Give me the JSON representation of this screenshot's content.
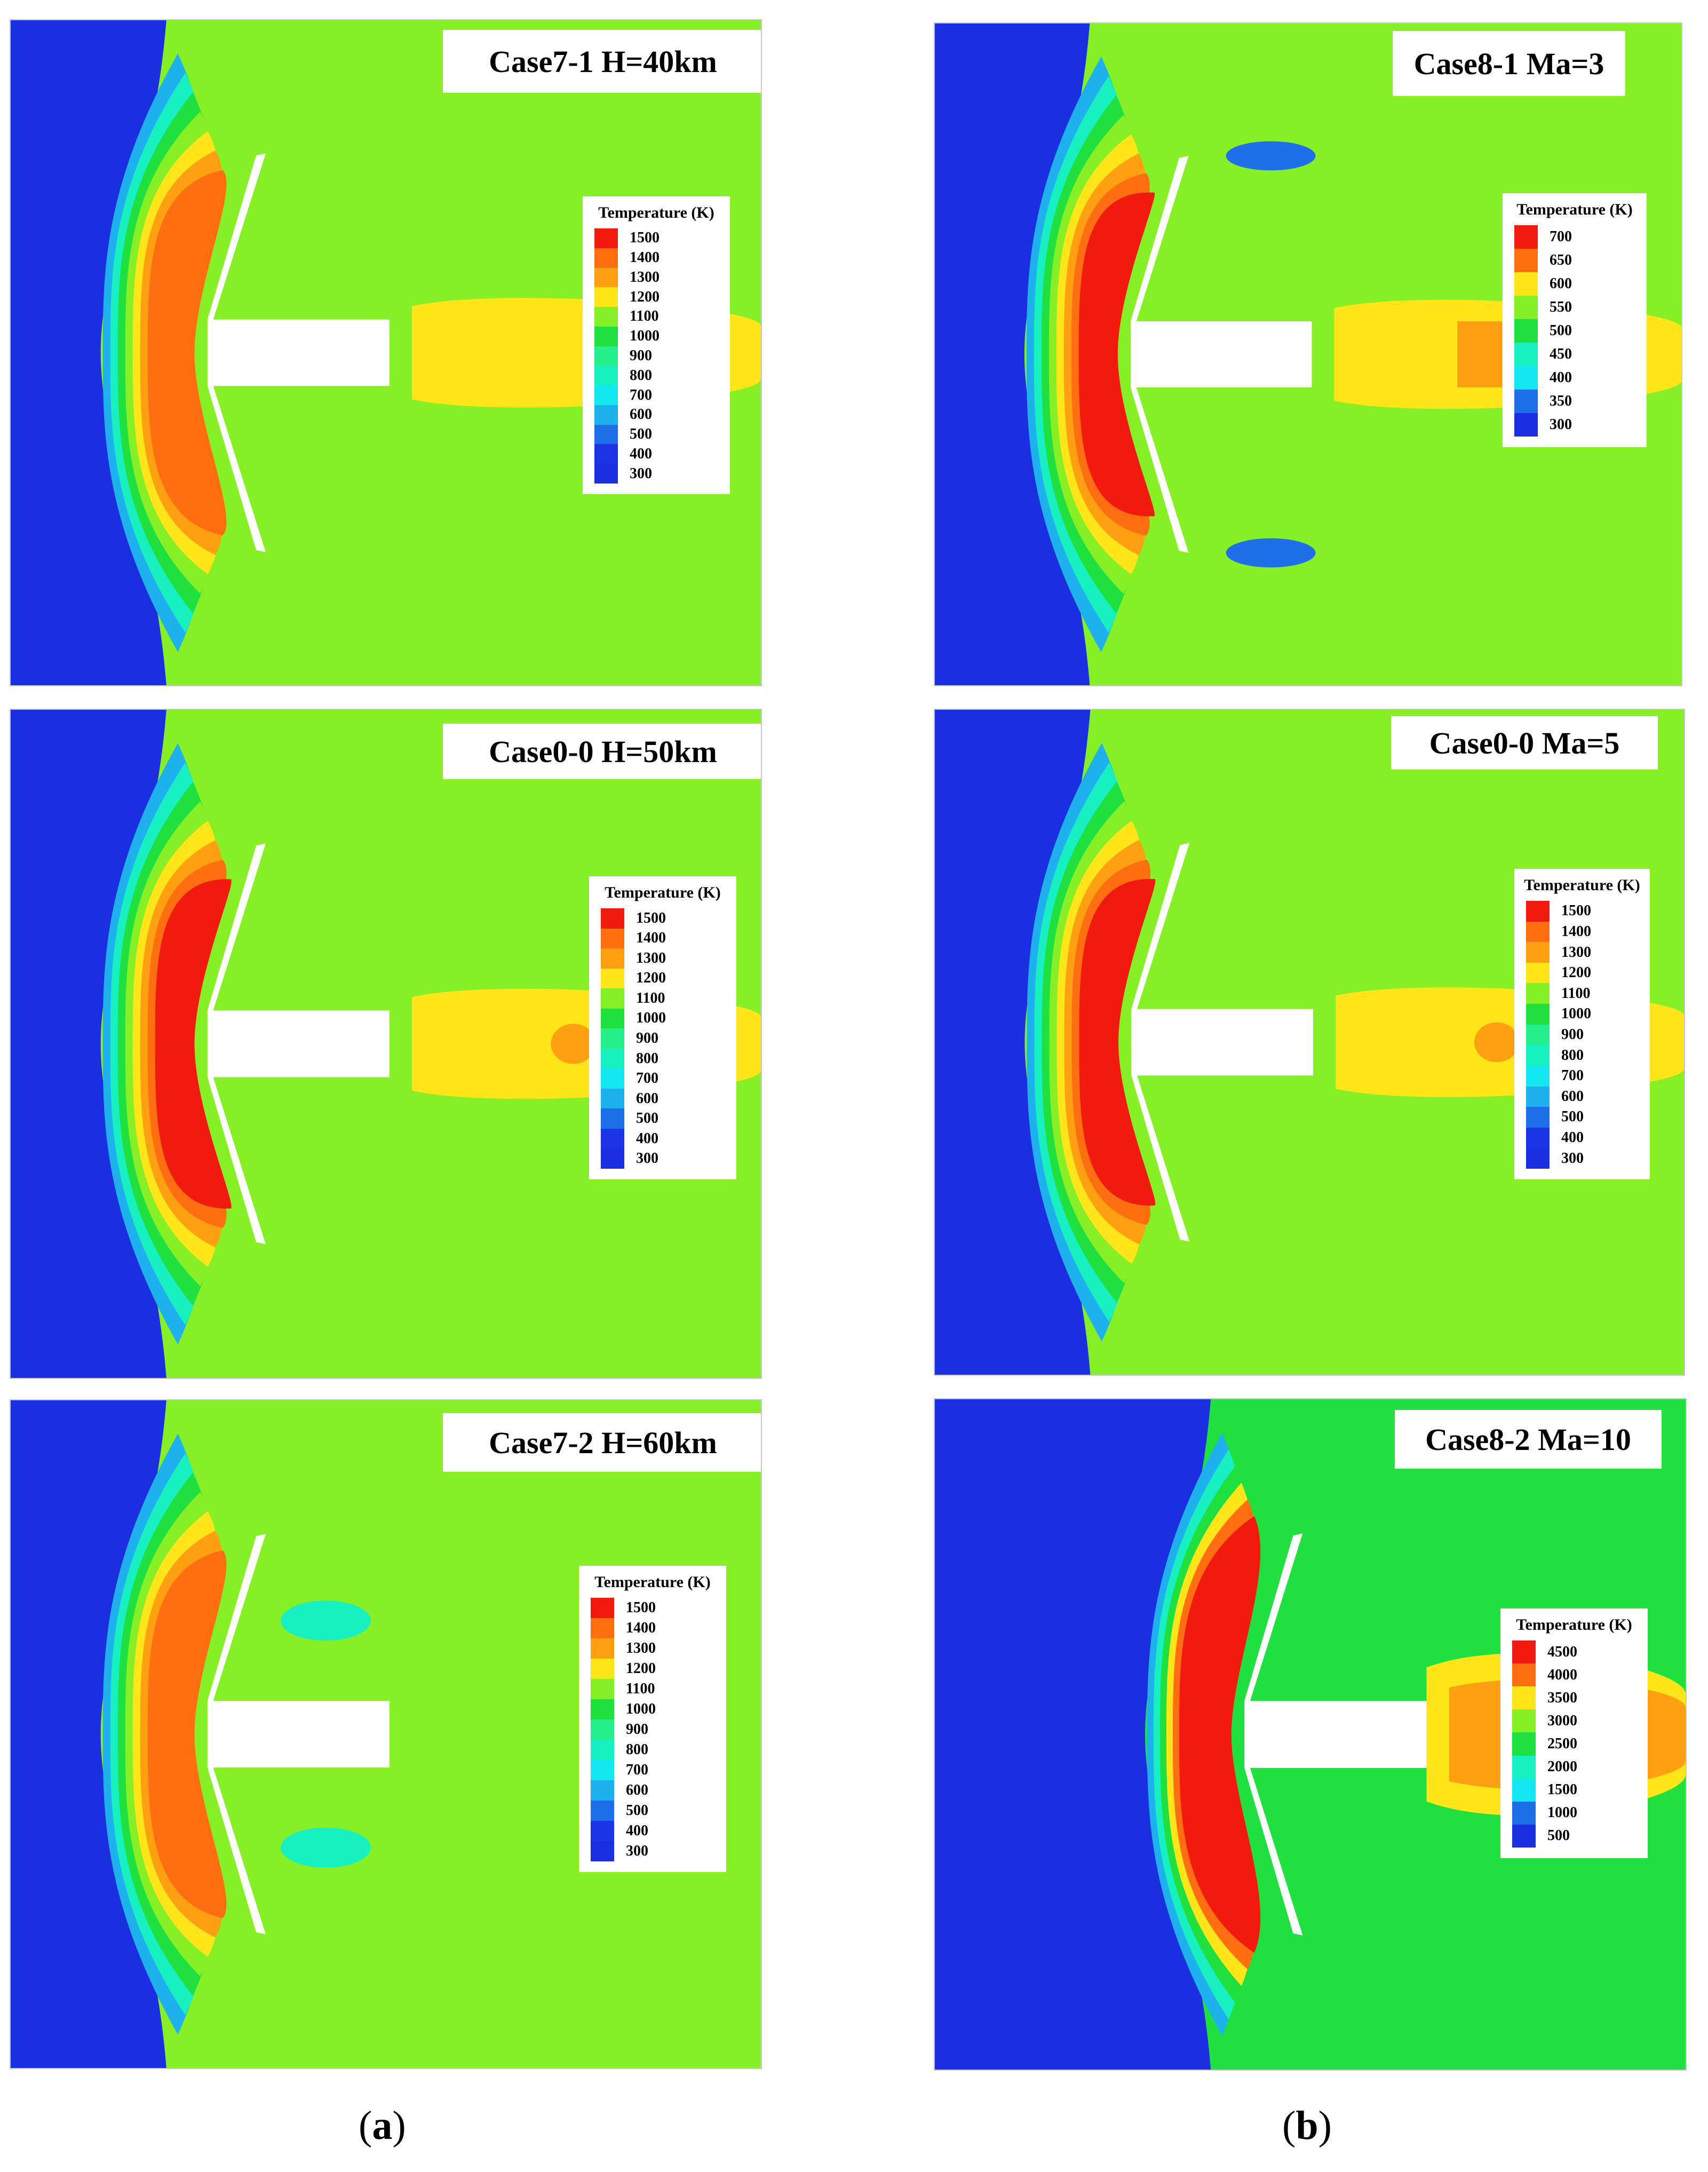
{
  "colors": {
    "freestream": "#1a2fe0",
    "bands": [
      "#1b35e6",
      "#1f6fe8",
      "#1fb1ee",
      "#14e6f2",
      "#18f0c2",
      "#26ee8c",
      "#20e040",
      "#86ef26",
      "#ffe51a",
      "#ffa012",
      "#ff6e10",
      "#f01a0f"
    ],
    "body": "#ffffff"
  },
  "panels": [
    {
      "title": "Case7-1 H=40km",
      "legend_title": "Temperature (K)",
      "legend_values": [
        "1500",
        "1400",
        "1300",
        "1200",
        "1100",
        "1000",
        "900",
        "800",
        "700",
        "600",
        "500",
        "400",
        "300"
      ]
    },
    {
      "title": "Case0-0 H=50km",
      "legend_title": "Temperature (K)",
      "legend_values": [
        "1500",
        "1400",
        "1300",
        "1200",
        "1100",
        "1000",
        "900",
        "800",
        "700",
        "600",
        "500",
        "400",
        "300"
      ]
    },
    {
      "title": "Case7-2 H=60km",
      "legend_title": "Temperature (K)",
      "legend_values": [
        "1500",
        "1400",
        "1300",
        "1200",
        "1100",
        "1000",
        "900",
        "800",
        "700",
        "600",
        "500",
        "400",
        "300"
      ]
    },
    {
      "title": "Case8-1 Ma=3",
      "legend_title": "Temperature (K)",
      "legend_values": [
        "700",
        "650",
        "600",
        "550",
        "500",
        "450",
        "400",
        "350",
        "300"
      ]
    },
    {
      "title": "Case0-0 Ma=5",
      "legend_title": "Temperature (K)",
      "legend_values": [
        "1500",
        "1400",
        "1300",
        "1200",
        "1100",
        "1000",
        "900",
        "800",
        "700",
        "600",
        "500",
        "400",
        "300"
      ]
    },
    {
      "title": "Case8-2 Ma=10",
      "legend_title": "Temperature (K)",
      "legend_values": [
        "4500",
        "4000",
        "3500",
        "3000",
        "2500",
        "2000",
        "1500",
        "1000",
        "500"
      ]
    }
  ],
  "labels": {
    "a": {
      "open": "(",
      "letter": "a",
      "close": ")"
    },
    "b": {
      "open": "(",
      "letter": "b",
      "close": ")"
    }
  }
}
